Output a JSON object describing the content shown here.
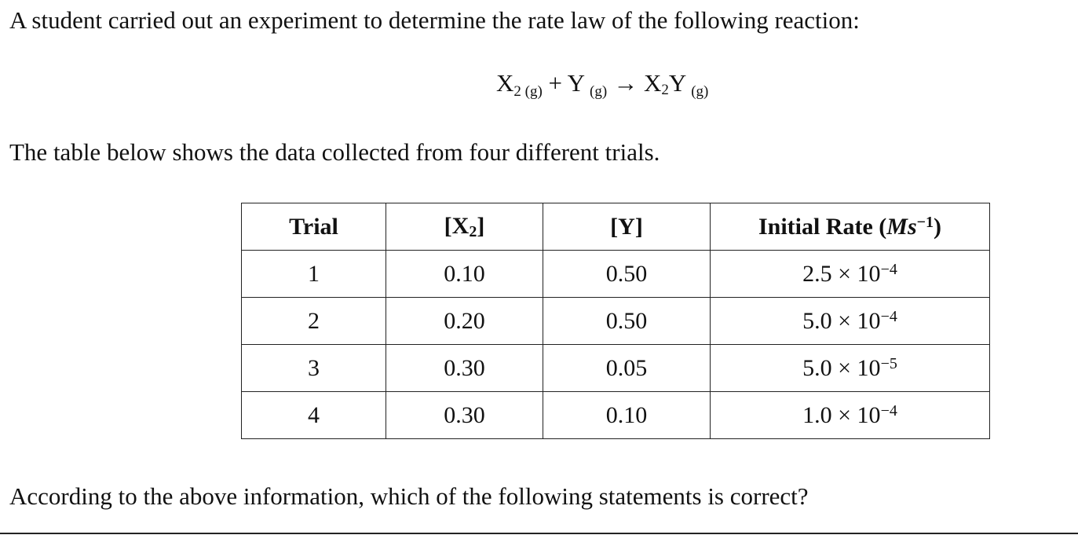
{
  "question": {
    "intro": "A student carried out an experiment to determine the rate law of the following reaction:",
    "equation": [
      "X",
      "2 (g)",
      "+ Y",
      "(g)",
      "→ X",
      "2",
      "Y",
      "(g)"
    ],
    "table_intro": "The table below shows the data collected from four different trials.",
    "table": {
      "header": {
        "trial": "Trial",
        "x2": [
          "[X",
          "2",
          "]"
        ],
        "y": "[Y]",
        "rate": [
          "Initial Rate (",
          "Ms",
          "−1",
          ")"
        ]
      },
      "rows": [
        {
          "trial": "1",
          "x2": "0.10",
          "y": "0.50",
          "rate": {
            "mantissa": "2.5 × 10",
            "exponent": "−4"
          }
        },
        {
          "trial": "2",
          "x2": "0.20",
          "y": "0.50",
          "rate": {
            "mantissa": "5.0 × 10",
            "exponent": "−4"
          }
        },
        {
          "trial": "3",
          "x2": "0.30",
          "y": "0.05",
          "rate": {
            "mantissa": "5.0 × 10",
            "exponent": "−5"
          }
        },
        {
          "trial": "4",
          "x2": "0.30",
          "y": "0.10",
          "rate": {
            "mantissa": "1.0 × 10",
            "exponent": "−4"
          }
        }
      ]
    },
    "prompt": "According to the above information, which of the following statements is correct?"
  }
}
